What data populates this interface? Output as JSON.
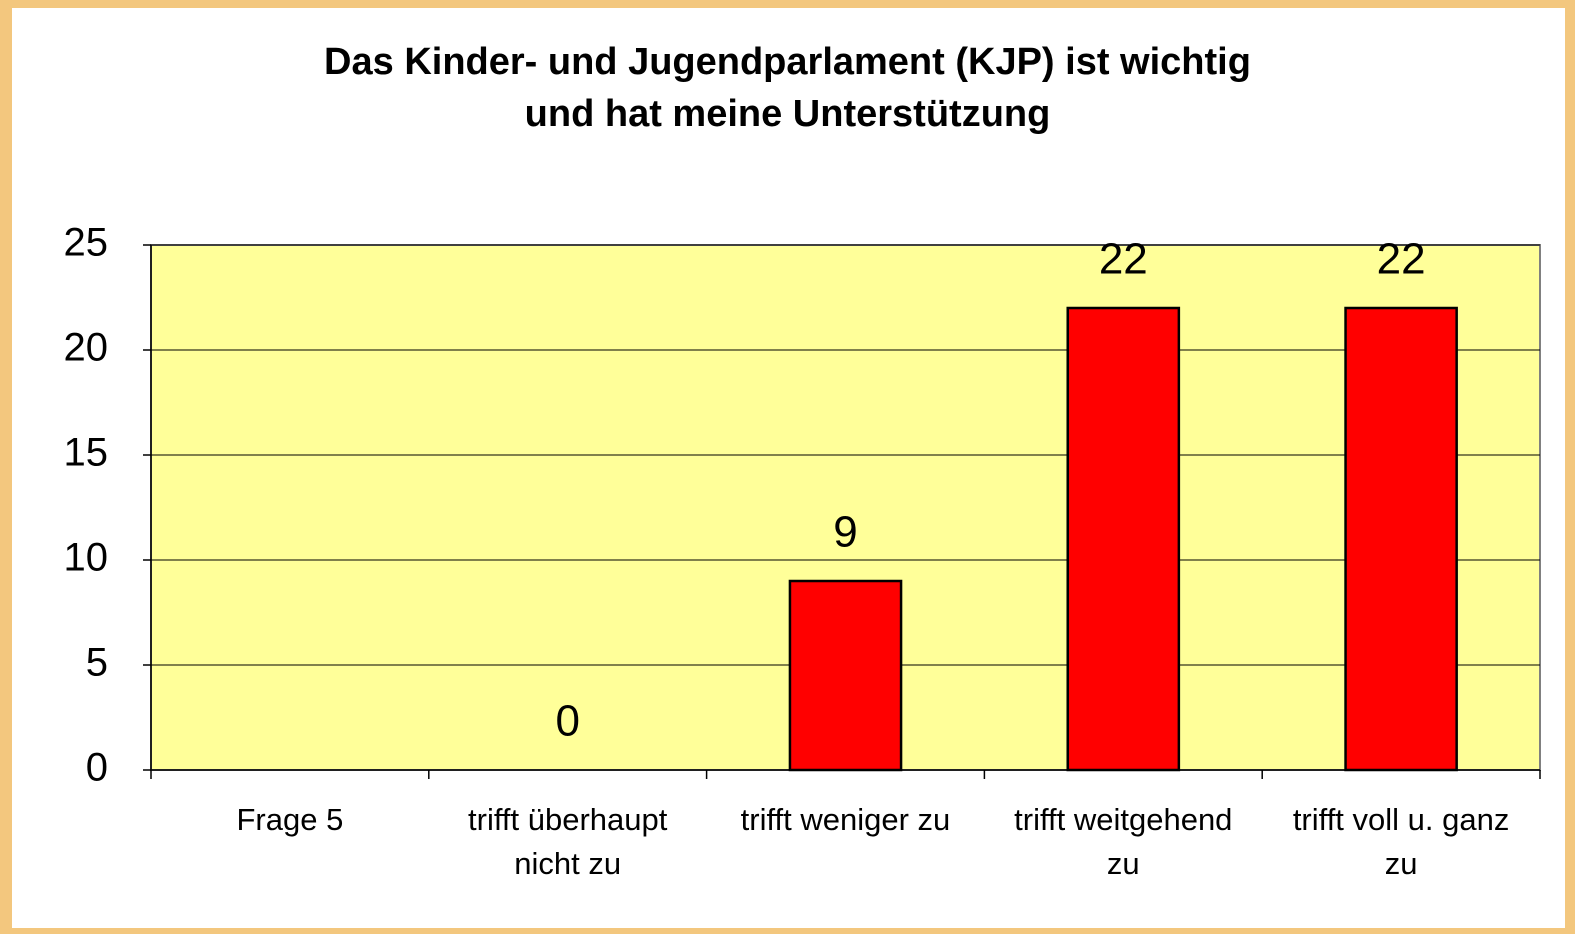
{
  "chart_data": {
    "type": "bar",
    "title": "Das Kinder- und Jugendparlament (KJP) ist wichtig\nund hat meine Unterstützung",
    "categories": [
      "Frage 5",
      "trifft überhaupt nicht zu",
      "trifft weniger zu",
      "trifft weitgehend zu",
      "trifft voll u. ganz zu"
    ],
    "values": [
      null,
      0,
      9,
      22,
      22
    ],
    "color": "#ff0000",
    "plot_background": "#ffff99",
    "ylim": [
      0,
      25
    ],
    "yticks": [
      0,
      5,
      10,
      15,
      20,
      25
    ],
    "grid": true
  }
}
